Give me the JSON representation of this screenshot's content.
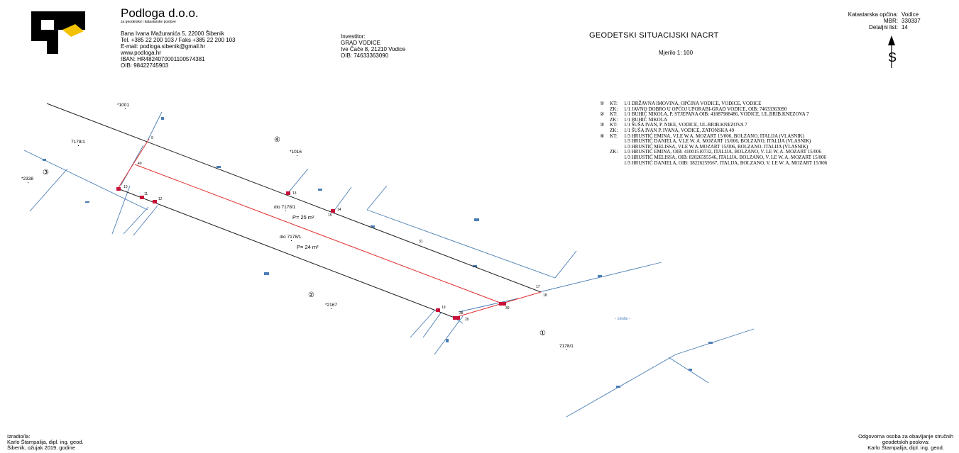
{
  "header": {
    "company_name": "Podloga d.o.o.",
    "company_subtitle": "za geodetske i katastarske poslove",
    "address_lines": [
      "Bana Ivana Mažuranića 5, 22000 Šibenik",
      "Tel. +385 22 200 103 / Faks +385 22 200 103",
      "E-mail: podloga.sibenik@gmail.hr",
      "www.podloga.hr",
      "IBAN: HR4824070001100574381",
      "OIB: 98422745903"
    ],
    "investor_label": "Investitor:",
    "investor_lines": [
      "GRAD VODICE",
      "Ive Čače 8, 21210 Vodice",
      "OIB: 74633363090"
    ],
    "title": "GEODETSKI SITUACIJSKI NACRT",
    "scale": "Mjerilo 1: 100",
    "meta": [
      {
        "label": "Katastarska općina:",
        "value": "Vodice"
      },
      {
        "label": "MBR:",
        "value": "330337"
      },
      {
        "label": "Detaljni list:",
        "value": "14"
      }
    ],
    "north_symbol": "S"
  },
  "legend": [
    {
      "num": "①",
      "tag": "KT:",
      "text": "1/1 DRŽAVNA IMOVINA, OPĆINA VODICE, VODICE, VODICE"
    },
    {
      "num": "",
      "tag": "ZK:",
      "text": "1/1 JAVNO DOBRO U OPĆOJ UPORABI-GRAD VODICE, OIB: 74633363090"
    },
    {
      "num": "②",
      "tag": "KT:",
      "text": "1/1 BUHIĆ NIKOLA, P. STJEPANA OIB: 41887988486, VODICE, UL.BRIB.KNEZOVA 7"
    },
    {
      "num": "",
      "tag": "ZK:",
      "text": "1/1 BUHIĆ NIKOLA"
    },
    {
      "num": "③",
      "tag": "KT:",
      "text": "1/1 ŠUŠA IVAN, P. NIKE, VODICE, UL.BRIB.KNEZOVA 7"
    },
    {
      "num": "",
      "tag": "ZK:",
      "text": "1/1 ŠUŠA IVAN P. IVANA, VODICE, ZATONSKA 49"
    },
    {
      "num": "④",
      "tag": "KT:",
      "text": "1/3 HRUSTIĆ EMINA, V.LE W.A. MOZART 15/006, BOLZANO, ITALIJA (VLASNIK)"
    },
    {
      "num": "",
      "tag": "",
      "text": "1/3 HRUSTIĆ DANIELA, V.LE W. A. MOZART 15/006, BOLZANO, ITALIJA (VLASNIK)"
    },
    {
      "num": "",
      "tag": "",
      "text": "1/3 HRUSTIĆ MELISSA, V.LE W.A.MOZART 15/006, BOLZANO, ITALIJA (VLASNIK)"
    },
    {
      "num": "",
      "tag": "ZK:",
      "text": "1/3 HRUSTIĆ EMINA, OIB: 41001510732, ITALIJA, BOLZANO, V. LE W. A. MOZART 15/006"
    },
    {
      "num": "",
      "tag": "",
      "text": "1/3 HRUSTIĆ MELISSA, OIB: 82026595546, ITALIJA, BOLZANO, V. LE W. A. MOZART 15/006"
    },
    {
      "num": "",
      "tag": "",
      "text": "1/3 HRUSTIĆ DANIELA, OIB: 38226259567, ITALIJA, BOLZANO, V. LE W. A. MOZART 15/006"
    }
  ],
  "map": {
    "parcels": [
      "*1001",
      "7178/1",
      "*2338",
      "*1016",
      "dio 7178/1",
      "dio 7178/1",
      "*2167",
      "7178/1"
    ],
    "owner_markers": [
      "④",
      "③",
      "②",
      "①"
    ],
    "areas": [
      "P= 25 m²",
      "P= 24 m²"
    ],
    "points": [
      "9",
      "40",
      "10",
      "11",
      "12",
      "13",
      "14",
      "15",
      "31",
      "17",
      "18",
      "19",
      "39",
      "20",
      "38"
    ],
    "road": "- cesta -"
  },
  "footer": {
    "left": [
      "Izradio/la:",
      "Karlo Štampalija, dipl. ing. geod.",
      "Šibenik, ožujak 2019. godine"
    ],
    "right": [
      "Odgovorna osoba za obavljanje stručnih",
      "geodetskih poslova:",
      "Karlo Štampalija, dipl. ing. geod."
    ]
  }
}
